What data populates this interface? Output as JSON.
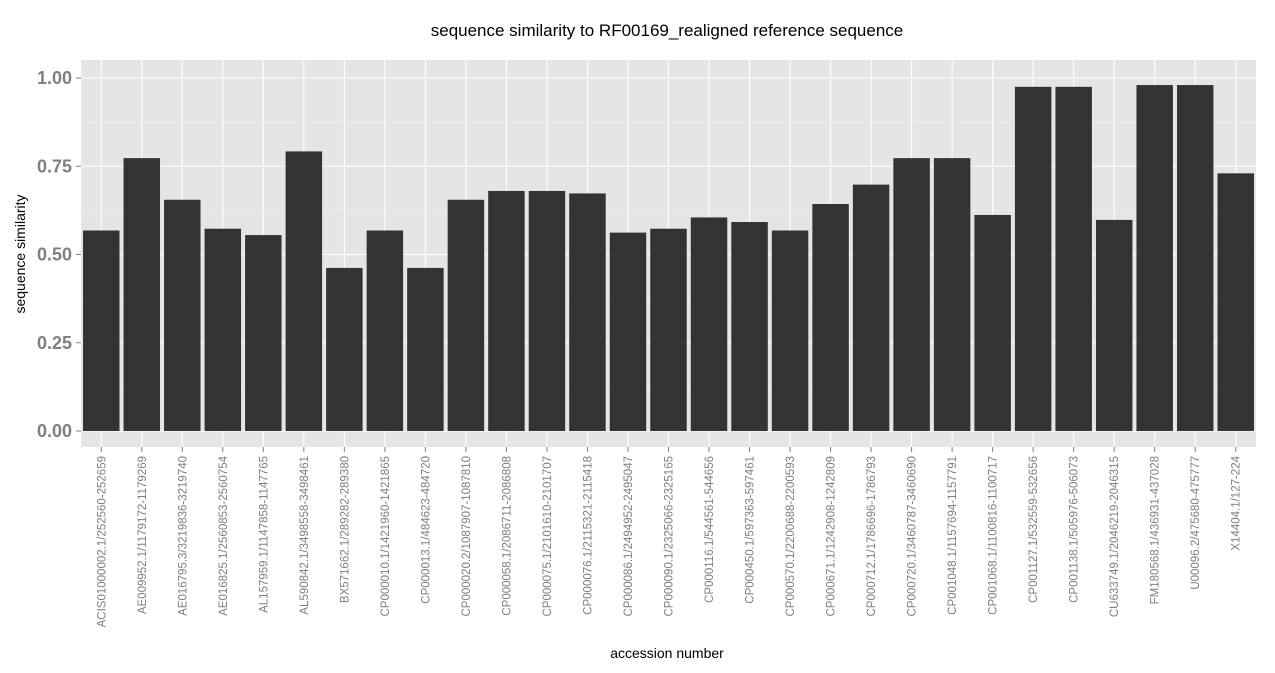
{
  "chart_data": {
    "type": "bar",
    "title": "sequence similarity to RF00169_realigned reference sequence",
    "xlabel": "accession number",
    "ylabel": "sequence similarity",
    "ylim": [
      0,
      1.04
    ],
    "yticks": [
      "0.00",
      "0.25",
      "0.50",
      "0.75",
      "1.00"
    ],
    "grid": true,
    "categories": [
      "ACIS01000002.1/252560-252659",
      "AE009952.1/1179172-1179269",
      "AE016795.3/3219836-3219740",
      "AE016825.1/2560853-2560754",
      "AL157959.1/1147858-1147765",
      "AL590842.1/3498558-3498461",
      "BX571662.1/289282-289380",
      "CP000010.1/1421960-1421865",
      "CP000013.1/484623-484720",
      "CP000020.2/1087907-1087810",
      "CP000058.1/2086711-2086808",
      "CP000075.1/2101610-2101707",
      "CP000076.1/2115321-2115418",
      "CP000086.1/2494952-2495047",
      "CP000090.1/2325066-2325165",
      "CP000116.1/544561-544656",
      "CP000450.1/597363-597461",
      "CP000570.1/2200688-2200593",
      "CP000671.1/1242908-1242809",
      "CP000712.1/1786696-1786793",
      "CP000720.1/3460787-3460690",
      "CP001048.1/1157694-1157791",
      "CP001068.1/1100816-1100717",
      "CP001127.1/532559-532656",
      "CP001138.1/505976-506073",
      "CU633749.1/2046219-2046315",
      "FM180568.1/436931-437028",
      "U00096.2/475680-475777",
      "X14404.1/127-224"
    ],
    "values": [
      0.568,
      0.773,
      0.655,
      0.573,
      0.555,
      0.792,
      0.462,
      0.568,
      0.462,
      0.655,
      0.68,
      0.68,
      0.673,
      0.562,
      0.573,
      0.605,
      0.592,
      0.568,
      0.643,
      0.698,
      0.773,
      0.773,
      0.612,
      0.975,
      0.975,
      0.598,
      0.98,
      0.98,
      0.73
    ],
    "colors": {
      "panel": "#e5e5e5",
      "grid_major": "#ffffff",
      "grid_minor": "#f2f2f2",
      "bar": "#333333",
      "tick": "#7f7f7f"
    }
  }
}
